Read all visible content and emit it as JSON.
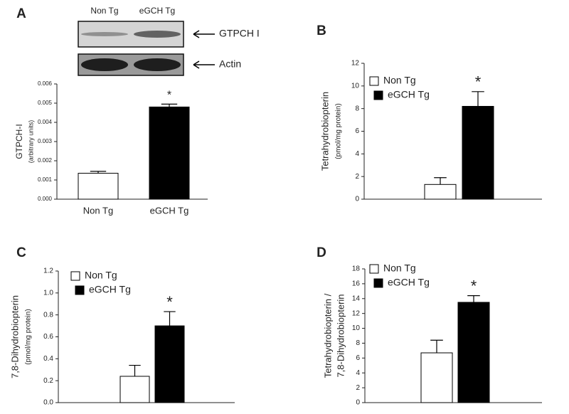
{
  "chart_data": [
    {
      "type": "bar",
      "panel": "A",
      "ylabel": [
        "GTPCH-I",
        "(arbitrary units)"
      ],
      "categories": [
        "Non Tg",
        "eGCH Tg"
      ],
      "values": [
        0.00135,
        0.0048
      ],
      "errors": [
        0.0001,
        0.00015
      ],
      "colors": [
        "#ffffff",
        "#000000"
      ],
      "annotation": "*",
      "ylim": [
        0,
        0.006
      ],
      "yticks": [
        {
          "value": 0,
          "label": "0.000"
        },
        {
          "value": 0.001,
          "label": "0.001"
        },
        {
          "value": 0.002,
          "label": "0.002"
        },
        {
          "value": 0.003,
          "label": "0.003"
        },
        {
          "value": 0.004,
          "label": "0.004"
        },
        {
          "value": 0.005,
          "label": "0.005"
        },
        {
          "value": 0.006,
          "label": "0.006"
        }
      ],
      "blot": {
        "lanes": [
          "Non Tg",
          "eGCH Tg"
        ],
        "bands": [
          "GTPCH I",
          "Actin"
        ]
      }
    },
    {
      "type": "bar",
      "panel": "B",
      "ylabel": [
        "Tetrahydrobiopterin",
        "(pmol/mg protein)"
      ],
      "series": [
        {
          "name": "Non Tg",
          "color": "#ffffff",
          "values": [
            1.3
          ],
          "errors": [
            0.6
          ]
        },
        {
          "name": "eGCH Tg",
          "color": "#000000",
          "values": [
            8.2
          ],
          "errors": [
            1.3
          ]
        }
      ],
      "annotation": "*",
      "ylim": [
        0,
        12
      ],
      "yticks": [
        0,
        2,
        4,
        6,
        8,
        10,
        12
      ]
    },
    {
      "type": "bar",
      "panel": "C",
      "ylabel": [
        "7,8-Dihydrobiopterin",
        "(pmol/mg protein)"
      ],
      "series": [
        {
          "name": "Non Tg",
          "color": "#ffffff",
          "values": [
            0.24
          ],
          "errors": [
            0.1
          ]
        },
        {
          "name": "eGCH Tg",
          "color": "#000000",
          "values": [
            0.7
          ],
          "errors": [
            0.13
          ]
        }
      ],
      "annotation": "*",
      "ylim": [
        0,
        1.2
      ],
      "yticks": [
        {
          "value": 0,
          "label": "0.0"
        },
        0.2,
        0.4,
        0.6,
        0.8,
        {
          "value": 1,
          "label": "1.0"
        },
        1.2
      ]
    },
    {
      "type": "bar",
      "panel": "D",
      "ylabel": [
        "Tetrahydrobiopterin /",
        "7,8-Dihydrobiopterin"
      ],
      "series": [
        {
          "name": "Non Tg",
          "color": "#ffffff",
          "values": [
            6.7
          ],
          "errors": [
            1.7
          ]
        },
        {
          "name": "eGCH Tg",
          "color": "#000000",
          "values": [
            13.5
          ],
          "errors": [
            0.9
          ]
        }
      ],
      "annotation": "*",
      "ylim": [
        0,
        18
      ],
      "yticks": [
        0,
        2,
        4,
        6,
        8,
        10,
        12,
        14,
        16,
        18
      ]
    }
  ]
}
